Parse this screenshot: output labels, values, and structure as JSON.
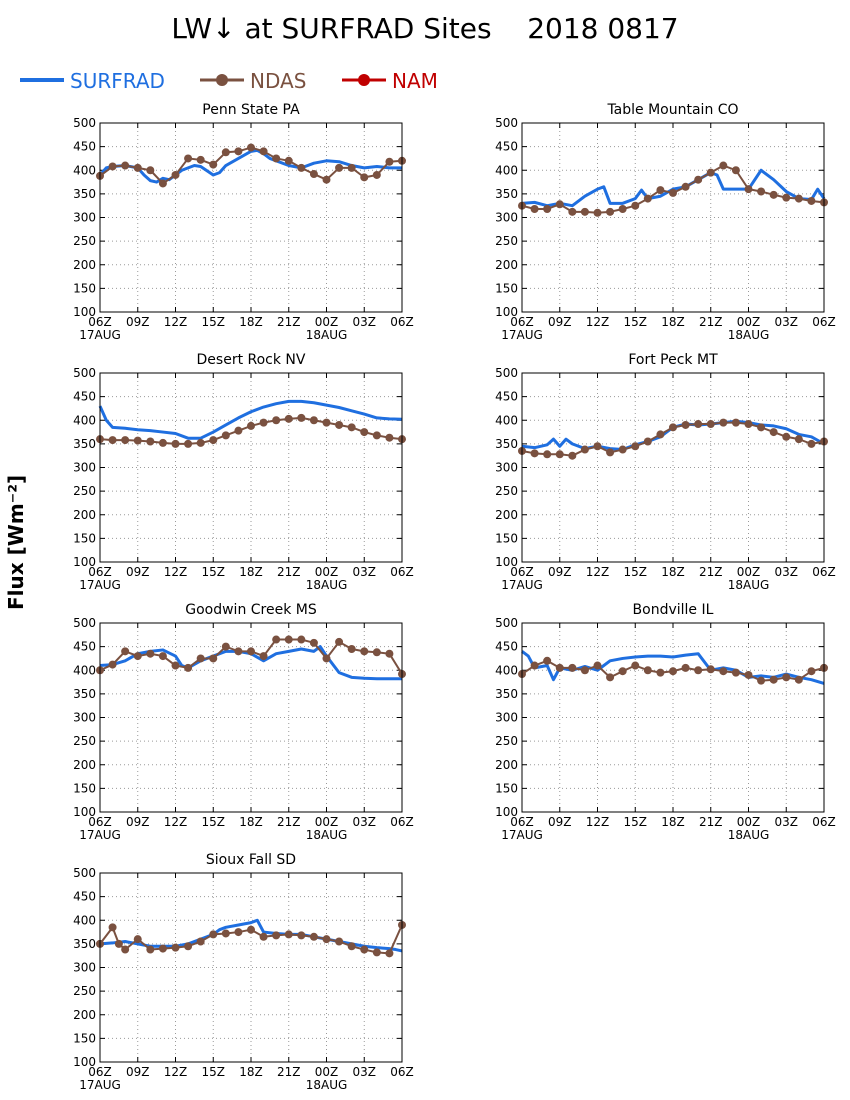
{
  "title": "LW↓ at SURFRAD Sites    2018 0817",
  "ylabel": "Flux [Wm⁻²]",
  "legend": [
    {
      "name": "SURFRAD",
      "color": "#1f6fe0",
      "marker": false
    },
    {
      "name": "NDAS",
      "color": "#7a5140",
      "marker": true
    },
    {
      "name": "NAM",
      "color": "#c00000",
      "marker": true
    }
  ],
  "axes": {
    "xticks": [
      "06Z",
      "09Z",
      "12Z",
      "15Z",
      "18Z",
      "21Z",
      "00Z",
      "03Z",
      "06Z"
    ],
    "xsub": [
      "17AUG",
      "18AUG"
    ],
    "xrange": [
      0,
      24
    ],
    "ylim": [
      100,
      500
    ],
    "yticks": [
      100,
      150,
      200,
      250,
      300,
      350,
      400,
      450,
      500
    ],
    "grid": true
  },
  "chart_data": [
    {
      "type": "line",
      "title": "Penn State PA",
      "series": [
        {
          "name": "SURFRAD",
          "x": [
            0,
            0.5,
            1,
            2,
            3,
            3.5,
            4,
            4.5,
            5,
            5.5,
            6,
            6.5,
            7,
            7.5,
            8,
            9,
            9.5,
            10,
            11,
            12,
            12.5,
            13,
            13.5,
            14,
            15,
            16,
            17,
            18,
            19,
            20,
            21,
            22,
            23,
            24
          ],
          "y": [
            390,
            405,
            408,
            410,
            405,
            390,
            378,
            375,
            383,
            380,
            390,
            400,
            405,
            410,
            408,
            390,
            395,
            410,
            425,
            440,
            442,
            435,
            425,
            420,
            410,
            405,
            415,
            420,
            418,
            410,
            405,
            408,
            405,
            405
          ]
        },
        {
          "name": "NDAS",
          "x": [
            0,
            1,
            2,
            3,
            4,
            5,
            6,
            7,
            8,
            9,
            10,
            11,
            12,
            13,
            14,
            15,
            16,
            17,
            18,
            19,
            20,
            21,
            22,
            23,
            24
          ],
          "y": [
            388,
            408,
            410,
            405,
            400,
            372,
            390,
            425,
            422,
            412,
            438,
            440,
            448,
            440,
            425,
            420,
            405,
            392,
            380,
            405,
            405,
            385,
            390,
            418,
            420
          ]
        }
      ]
    },
    {
      "type": "line",
      "title": "Table Mountain CO",
      "series": [
        {
          "name": "SURFRAD",
          "x": [
            0,
            1,
            2,
            3,
            4,
            5,
            6,
            6.5,
            7,
            8,
            9,
            9.5,
            10,
            11,
            12,
            13,
            14,
            15,
            15.5,
            16,
            17,
            18,
            19,
            20,
            21,
            22,
            23,
            23.5,
            24
          ],
          "y": [
            330,
            332,
            325,
            330,
            325,
            345,
            360,
            365,
            330,
            330,
            340,
            358,
            340,
            345,
            360,
            365,
            380,
            395,
            390,
            360,
            360,
            360,
            400,
            380,
            355,
            340,
            338,
            360,
            340
          ]
        },
        {
          "name": "NDAS",
          "x": [
            0,
            1,
            2,
            3,
            4,
            5,
            6,
            7,
            8,
            9,
            10,
            11,
            12,
            13,
            14,
            15,
            16,
            17,
            18,
            19,
            20,
            21,
            22,
            23,
            24
          ],
          "y": [
            325,
            318,
            318,
            328,
            312,
            312,
            310,
            312,
            318,
            325,
            340,
            358,
            352,
            365,
            380,
            395,
            410,
            400,
            360,
            355,
            348,
            342,
            340,
            335,
            332
          ]
        }
      ]
    },
    {
      "type": "line",
      "title": "Desert Rock NV",
      "series": [
        {
          "name": "SURFRAD",
          "x": [
            0,
            0.5,
            1,
            2,
            3,
            4,
            5,
            6,
            7,
            8,
            9,
            10,
            11,
            12,
            13,
            14,
            15,
            16,
            17,
            18,
            19,
            20,
            21,
            22,
            23,
            24
          ],
          "y": [
            430,
            400,
            385,
            383,
            380,
            378,
            375,
            372,
            362,
            362,
            375,
            390,
            405,
            418,
            428,
            435,
            440,
            440,
            437,
            432,
            427,
            420,
            413,
            405,
            403,
            402
          ]
        },
        {
          "name": "NDAS",
          "x": [
            0,
            1,
            2,
            3,
            4,
            5,
            6,
            7,
            8,
            9,
            10,
            11,
            12,
            13,
            14,
            15,
            16,
            17,
            18,
            19,
            20,
            21,
            22,
            23,
            24
          ],
          "y": [
            360,
            358,
            358,
            357,
            355,
            352,
            350,
            350,
            352,
            358,
            368,
            378,
            388,
            395,
            400,
            403,
            405,
            400,
            395,
            390,
            385,
            375,
            368,
            363,
            360
          ]
        }
      ]
    },
    {
      "type": "line",
      "title": "Fort Peck MT",
      "series": [
        {
          "name": "SURFRAD",
          "x": [
            0,
            1,
            2,
            2.5,
            3,
            3.5,
            4,
            5,
            6,
            7,
            8,
            9,
            10,
            11,
            12,
            13,
            14,
            15,
            16,
            17,
            18,
            19,
            20,
            21,
            22,
            23,
            24
          ],
          "y": [
            345,
            342,
            348,
            360,
            345,
            360,
            350,
            340,
            345,
            340,
            338,
            348,
            355,
            365,
            385,
            392,
            390,
            392,
            395,
            398,
            395,
            390,
            388,
            382,
            370,
            365,
            350
          ]
        },
        {
          "name": "NDAS",
          "x": [
            0,
            1,
            2,
            3,
            4,
            5,
            6,
            7,
            8,
            9,
            10,
            11,
            12,
            13,
            14,
            15,
            16,
            17,
            18,
            19,
            20,
            21,
            22,
            23,
            24
          ],
          "y": [
            335,
            330,
            328,
            328,
            325,
            338,
            345,
            332,
            338,
            345,
            355,
            370,
            385,
            390,
            392,
            392,
            395,
            395,
            392,
            385,
            375,
            365,
            360,
            350,
            355
          ]
        }
      ]
    },
    {
      "type": "line",
      "title": "Goodwin Creek MS",
      "series": [
        {
          "name": "SURFRAD",
          "x": [
            0,
            1,
            2,
            3,
            4,
            5,
            6,
            6.5,
            7,
            8,
            9,
            10,
            11,
            12,
            13,
            14,
            15,
            16,
            17,
            17.5,
            18,
            19,
            20,
            21,
            22,
            23,
            24
          ],
          "y": [
            410,
            412,
            420,
            435,
            440,
            443,
            430,
            410,
            405,
            420,
            430,
            440,
            440,
            435,
            420,
            435,
            440,
            445,
            440,
            450,
            430,
            395,
            385,
            383,
            382,
            382,
            382
          ]
        },
        {
          "name": "NDAS",
          "x": [
            0,
            1,
            2,
            3,
            4,
            5,
            6,
            7,
            8,
            9,
            10,
            11,
            12,
            13,
            14,
            15,
            16,
            17,
            18,
            19,
            20,
            21,
            22,
            23,
            24
          ],
          "y": [
            400,
            412,
            440,
            430,
            435,
            430,
            410,
            405,
            425,
            425,
            450,
            440,
            440,
            430,
            465,
            465,
            465,
            458,
            425,
            460,
            445,
            440,
            438,
            435,
            392
          ]
        }
      ]
    },
    {
      "type": "line",
      "title": "Bondville IL",
      "series": [
        {
          "name": "SURFRAD",
          "x": [
            0,
            0.5,
            1,
            2,
            2.5,
            3,
            4,
            5,
            6,
            7,
            8,
            9,
            10,
            11,
            12,
            13,
            14,
            15,
            16,
            17,
            18,
            19,
            20,
            21,
            22,
            23,
            24
          ],
          "y": [
            440,
            430,
            405,
            410,
            380,
            405,
            400,
            408,
            400,
            420,
            425,
            428,
            430,
            430,
            428,
            432,
            435,
            400,
            405,
            400,
            385,
            388,
            385,
            392,
            385,
            380,
            372
          ]
        },
        {
          "name": "NDAS",
          "x": [
            0,
            1,
            2,
            3,
            4,
            5,
            6,
            7,
            8,
            9,
            10,
            11,
            12,
            13,
            14,
            15,
            16,
            17,
            18,
            19,
            20,
            21,
            22,
            23,
            24
          ],
          "y": [
            392,
            410,
            420,
            405,
            405,
            400,
            410,
            385,
            398,
            410,
            400,
            395,
            398,
            405,
            400,
            402,
            398,
            395,
            390,
            378,
            380,
            385,
            380,
            398,
            405
          ]
        }
      ]
    },
    {
      "type": "line",
      "title": "Sioux Fall SD",
      "series": [
        {
          "name": "SURFRAD",
          "x": [
            0,
            1,
            2,
            3,
            4,
            5,
            6,
            7,
            8,
            9,
            9.5,
            10,
            11,
            12,
            12.5,
            13,
            14,
            15,
            16,
            17,
            18,
            19,
            20,
            21,
            22,
            23,
            23.5,
            24
          ],
          "y": [
            350,
            352,
            355,
            350,
            345,
            345,
            345,
            350,
            360,
            370,
            380,
            385,
            390,
            395,
            400,
            375,
            372,
            370,
            370,
            365,
            360,
            355,
            350,
            345,
            342,
            340,
            338,
            335
          ]
        },
        {
          "name": "NDAS",
          "x": [
            0,
            1,
            1.5,
            2,
            3,
            4,
            5,
            6,
            7,
            8,
            9,
            10,
            11,
            12,
            13,
            14,
            15,
            16,
            17,
            18,
            19,
            20,
            21,
            22,
            23,
            24
          ],
          "y": [
            350,
            385,
            350,
            338,
            360,
            338,
            340,
            342,
            345,
            355,
            370,
            372,
            375,
            380,
            365,
            368,
            370,
            368,
            365,
            360,
            355,
            345,
            338,
            332,
            330,
            390
          ]
        }
      ]
    }
  ]
}
